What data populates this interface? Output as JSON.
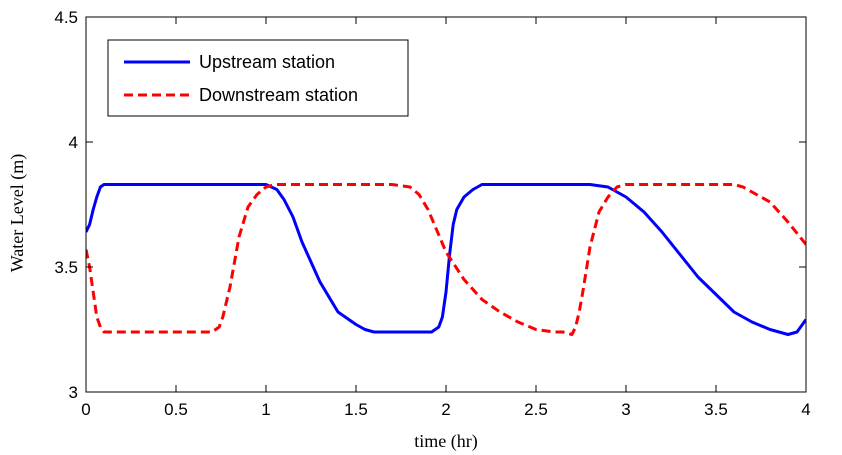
{
  "chart_data": {
    "type": "line",
    "title": "",
    "xlabel": "time (hr)",
    "ylabel": "Water Level (m)",
    "xlim": [
      0,
      4
    ],
    "ylim": [
      3,
      4.5
    ],
    "xticks": [
      0,
      0.5,
      1,
      1.5,
      2,
      2.5,
      3,
      3.5,
      4
    ],
    "xtick_labels": [
      "0",
      "0.5",
      "1",
      "1.5",
      "2",
      "2.5",
      "3",
      "3.5",
      "4"
    ],
    "yticks": [
      3,
      3.5,
      4,
      4.5
    ],
    "ytick_labels": [
      "3",
      "3.5",
      "4",
      "4.5"
    ],
    "grid": false,
    "legend_position": "top-left",
    "series": [
      {
        "name": "Upstream station",
        "color": "#0000ff",
        "style": "solid",
        "x": [
          0,
          0.02,
          0.04,
          0.06,
          0.08,
          0.1,
          0.3,
          0.5,
          0.8,
          0.95,
          1.0,
          1.03,
          1.06,
          1.1,
          1.15,
          1.2,
          1.3,
          1.4,
          1.5,
          1.55,
          1.6,
          1.7,
          1.8,
          1.92,
          1.96,
          1.98,
          2.0,
          2.02,
          2.04,
          2.06,
          2.1,
          2.15,
          2.2,
          2.25,
          2.5,
          2.8,
          2.9,
          2.95,
          3.0,
          3.1,
          3.2,
          3.3,
          3.4,
          3.5,
          3.6,
          3.7,
          3.8,
          3.85,
          3.9,
          3.95,
          3.98,
          4.0
        ],
        "y": [
          3.64,
          3.67,
          3.73,
          3.78,
          3.82,
          3.83,
          3.83,
          3.83,
          3.83,
          3.83,
          3.83,
          3.82,
          3.81,
          3.77,
          3.7,
          3.6,
          3.44,
          3.32,
          3.27,
          3.25,
          3.24,
          3.24,
          3.24,
          3.24,
          3.26,
          3.3,
          3.4,
          3.55,
          3.67,
          3.73,
          3.78,
          3.81,
          3.83,
          3.83,
          3.83,
          3.83,
          3.82,
          3.8,
          3.78,
          3.72,
          3.64,
          3.55,
          3.46,
          3.39,
          3.32,
          3.28,
          3.25,
          3.24,
          3.23,
          3.24,
          3.27,
          3.29
        ]
      },
      {
        "name": "Downstream station",
        "color": "#ff0000",
        "style": "dashed",
        "x": [
          0,
          0.02,
          0.04,
          0.06,
          0.08,
          0.1,
          0.15,
          0.3,
          0.5,
          0.7,
          0.74,
          0.76,
          0.8,
          0.85,
          0.9,
          0.95,
          1.0,
          1.05,
          1.2,
          1.5,
          1.7,
          1.8,
          1.85,
          1.9,
          2.0,
          2.1,
          2.2,
          2.3,
          2.4,
          2.5,
          2.6,
          2.65,
          2.7,
          2.72,
          2.74,
          2.76,
          2.8,
          2.85,
          2.9,
          2.95,
          3.0,
          3.05,
          3.3,
          3.5,
          3.6,
          3.65,
          3.7,
          3.8,
          3.9,
          4.0
        ],
        "y": [
          3.57,
          3.5,
          3.4,
          3.3,
          3.26,
          3.24,
          3.24,
          3.24,
          3.24,
          3.24,
          3.26,
          3.3,
          3.42,
          3.62,
          3.74,
          3.79,
          3.82,
          3.83,
          3.83,
          3.83,
          3.83,
          3.82,
          3.79,
          3.73,
          3.56,
          3.45,
          3.37,
          3.32,
          3.28,
          3.25,
          3.24,
          3.24,
          3.23,
          3.26,
          3.32,
          3.4,
          3.58,
          3.72,
          3.78,
          3.82,
          3.83,
          3.83,
          3.83,
          3.83,
          3.83,
          3.82,
          3.8,
          3.76,
          3.68,
          3.59
        ]
      }
    ]
  }
}
